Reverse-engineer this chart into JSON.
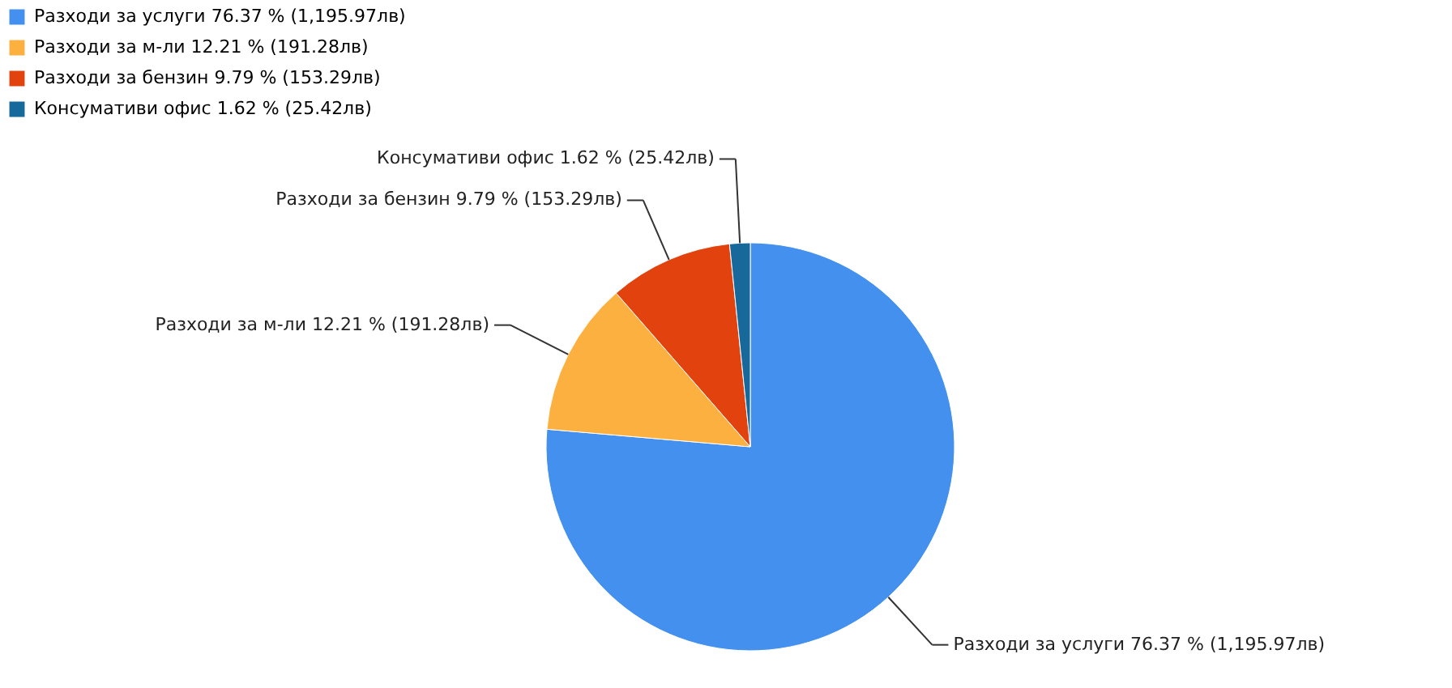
{
  "chart_data": {
    "type": "pie",
    "categories": [
      "Разходи за услуги",
      "Разходи за м-ли",
      "Разходи за бензин",
      "Консумативи офис"
    ],
    "values": [
      1195.97,
      191.28,
      153.29,
      25.42
    ],
    "value_labels": [
      "76.37 % (1,195.97лв)",
      "12.21 % (191.28лв)",
      "9.79 % (153.29лв)",
      "1.62 % (25.42лв)"
    ],
    "colors": [
      "#4490ee",
      "#fbb040",
      "#e2430e",
      "#17699b"
    ],
    "legend": "top left"
  }
}
